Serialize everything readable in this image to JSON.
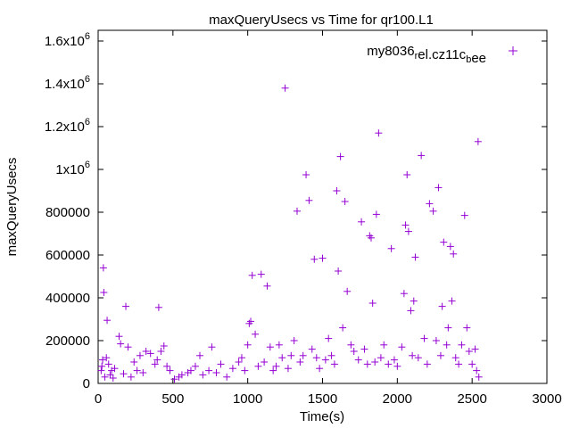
{
  "chart_data": {
    "type": "scatter",
    "title": "maxQueryUsecs vs Time for qr100.L1",
    "xlabel": "Time(s)",
    "ylabel": "maxQueryUsecs",
    "xlim": [
      0,
      3000
    ],
    "ylim": [
      0,
      1650000
    ],
    "grid": false,
    "legend_position": "top-right",
    "x_ticks": [
      {
        "value": 0,
        "label": "0"
      },
      {
        "value": 500,
        "label": "500"
      },
      {
        "value": 1000,
        "label": "1000"
      },
      {
        "value": 1500,
        "label": "1500"
      },
      {
        "value": 2000,
        "label": "2000"
      },
      {
        "value": 2500,
        "label": "2500"
      },
      {
        "value": 3000,
        "label": "3000"
      }
    ],
    "y_ticks": [
      {
        "value": 0,
        "label": "0"
      },
      {
        "value": 200000,
        "label": "200000"
      },
      {
        "value": 400000,
        "label": "400000"
      },
      {
        "value": 600000,
        "label": "600000"
      },
      {
        "value": 800000,
        "label": "800000"
      },
      {
        "value": 1000000,
        "base": "1x10",
        "exp": "6"
      },
      {
        "value": 1200000,
        "base": "1.2x10",
        "exp": "6"
      },
      {
        "value": 1400000,
        "base": "1.4x10",
        "exp": "6"
      },
      {
        "value": 1600000,
        "base": "1.6x10",
        "exp": "6"
      }
    ],
    "series": [
      {
        "legend_parts": [
          {
            "text": "my8036",
            "sub": false
          },
          {
            "text": "r",
            "sub": true
          },
          {
            "text": "el.cz11c",
            "sub": false
          },
          {
            "text": "b",
            "sub": true
          },
          {
            "text": "ee",
            "sub": false
          }
        ],
        "color": "#9400d3",
        "marker": "plus",
        "points": [
          [
            20,
            60000
          ],
          [
            25,
            80000
          ],
          [
            30,
            110000
          ],
          [
            35,
            540000
          ],
          [
            38,
            425000
          ],
          [
            45,
            30000
          ],
          [
            55,
            120000
          ],
          [
            60,
            295000
          ],
          [
            70,
            90000
          ],
          [
            80,
            40000
          ],
          [
            90,
            60000
          ],
          [
            100,
            25000
          ],
          [
            110,
            70000
          ],
          [
            140,
            220000
          ],
          [
            150,
            185000
          ],
          [
            170,
            45000
          ],
          [
            185,
            360000
          ],
          [
            200,
            170000
          ],
          [
            220,
            30000
          ],
          [
            240,
            100000
          ],
          [
            260,
            60000
          ],
          [
            280,
            130000
          ],
          [
            300,
            50000
          ],
          [
            320,
            150000
          ],
          [
            350,
            140000
          ],
          [
            380,
            90000
          ],
          [
            395,
            110000
          ],
          [
            405,
            355000
          ],
          [
            420,
            150000
          ],
          [
            440,
            175000
          ],
          [
            460,
            80000
          ],
          [
            480,
            60000
          ],
          [
            510,
            20000
          ],
          [
            540,
            30000
          ],
          [
            560,
            40000
          ],
          [
            600,
            50000
          ],
          [
            620,
            60000
          ],
          [
            650,
            80000
          ],
          [
            680,
            130000
          ],
          [
            700,
            40000
          ],
          [
            740,
            60000
          ],
          [
            760,
            170000
          ],
          [
            790,
            50000
          ],
          [
            820,
            90000
          ],
          [
            860,
            30000
          ],
          [
            900,
            70000
          ],
          [
            940,
            100000
          ],
          [
            960,
            120000
          ],
          [
            980,
            60000
          ],
          [
            1000,
            180000
          ],
          [
            1010,
            280000
          ],
          [
            1020,
            290000
          ],
          [
            1030,
            505000
          ],
          [
            1050,
            230000
          ],
          [
            1070,
            80000
          ],
          [
            1090,
            510000
          ],
          [
            1110,
            100000
          ],
          [
            1130,
            455000
          ],
          [
            1150,
            170000
          ],
          [
            1170,
            60000
          ],
          [
            1190,
            80000
          ],
          [
            1210,
            180000
          ],
          [
            1230,
            120000
          ],
          [
            1250,
            1380000
          ],
          [
            1270,
            70000
          ],
          [
            1290,
            130000
          ],
          [
            1310,
            200000
          ],
          [
            1330,
            805000
          ],
          [
            1350,
            100000
          ],
          [
            1370,
            130000
          ],
          [
            1390,
            975000
          ],
          [
            1410,
            855000
          ],
          [
            1430,
            160000
          ],
          [
            1445,
            580000
          ],
          [
            1460,
            120000
          ],
          [
            1480,
            70000
          ],
          [
            1500,
            585000
          ],
          [
            1520,
            110000
          ],
          [
            1540,
            210000
          ],
          [
            1560,
            130000
          ],
          [
            1580,
            90000
          ],
          [
            1595,
            900000
          ],
          [
            1605,
            525000
          ],
          [
            1620,
            1060000
          ],
          [
            1635,
            260000
          ],
          [
            1650,
            850000
          ],
          [
            1665,
            430000
          ],
          [
            1690,
            180000
          ],
          [
            1710,
            150000
          ],
          [
            1740,
            110000
          ],
          [
            1760,
            755000
          ],
          [
            1780,
            160000
          ],
          [
            1800,
            90000
          ],
          [
            1815,
            690000
          ],
          [
            1825,
            680000
          ],
          [
            1835,
            375000
          ],
          [
            1850,
            100000
          ],
          [
            1860,
            790000
          ],
          [
            1875,
            1170000
          ],
          [
            1890,
            120000
          ],
          [
            1910,
            180000
          ],
          [
            1940,
            90000
          ],
          [
            1960,
            630000
          ],
          [
            1980,
            110000
          ],
          [
            2000,
            80000
          ],
          [
            2030,
            170000
          ],
          [
            2045,
            420000
          ],
          [
            2055,
            740000
          ],
          [
            2065,
            975000
          ],
          [
            2075,
            710000
          ],
          [
            2090,
            340000
          ],
          [
            2100,
            130000
          ],
          [
            2110,
            385000
          ],
          [
            2120,
            590000
          ],
          [
            2140,
            120000
          ],
          [
            2160,
            1065000
          ],
          [
            2180,
            210000
          ],
          [
            2200,
            90000
          ],
          [
            2215,
            840000
          ],
          [
            2240,
            805000
          ],
          [
            2260,
            200000
          ],
          [
            2275,
            915000
          ],
          [
            2290,
            130000
          ],
          [
            2300,
            360000
          ],
          [
            2310,
            660000
          ],
          [
            2330,
            180000
          ],
          [
            2340,
            260000
          ],
          [
            2355,
            640000
          ],
          [
            2365,
            385000
          ],
          [
            2375,
            605000
          ],
          [
            2390,
            120000
          ],
          [
            2410,
            90000
          ],
          [
            2430,
            180000
          ],
          [
            2450,
            785000
          ],
          [
            2465,
            260000
          ],
          [
            2480,
            150000
          ],
          [
            2500,
            90000
          ],
          [
            2520,
            160000
          ],
          [
            2530,
            60000
          ],
          [
            2540,
            1130000
          ],
          [
            2545,
            30000
          ]
        ]
      }
    ]
  }
}
